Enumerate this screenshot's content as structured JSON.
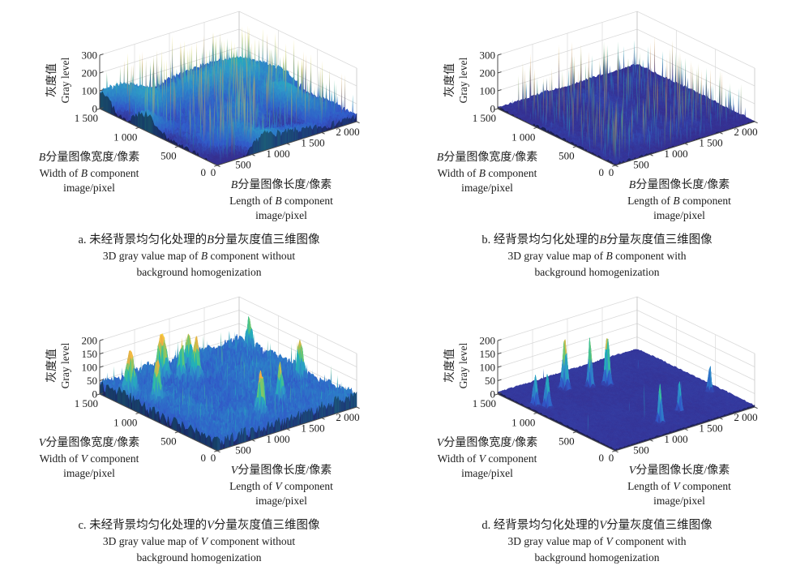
{
  "figure": {
    "background": "#ffffff",
    "grid_color": "#d9d9d9",
    "box_color": "#c6c6c6",
    "axis_color": "#4b4b4b",
    "text_color": "#1c1c1c",
    "colormap": [
      [
        0,
        "#342d8e"
      ],
      [
        0.12,
        "#3158c8"
      ],
      [
        0.25,
        "#2d7dc8"
      ],
      [
        0.37,
        "#2f9ac8"
      ],
      [
        0.5,
        "#20b5b4"
      ],
      [
        0.62,
        "#5ec878"
      ],
      [
        0.75,
        "#b9c24f"
      ],
      [
        0.87,
        "#f2ab44"
      ],
      [
        1,
        "#f7e63e"
      ]
    ]
  },
  "chart_data": [
    {
      "id": "a",
      "type": "surface3d",
      "zlabel": {
        "zh": "灰度值",
        "en": "Gray level"
      },
      "ylabel_lines": [
        [
          [
            "B",
            1
          ],
          [
            "分量图像宽度/像素",
            0
          ]
        ],
        [
          [
            "Width of ",
            0
          ],
          [
            "B",
            1
          ],
          [
            " component",
            0
          ]
        ],
        [
          [
            "image/pixel",
            0
          ]
        ]
      ],
      "xlabel_lines": [
        [
          [
            "B",
            1
          ],
          [
            "分量图像长度/像素",
            0
          ]
        ],
        [
          [
            "Length of ",
            0
          ],
          [
            "B",
            1
          ],
          [
            " component",
            0
          ]
        ],
        [
          [
            "image/pixel",
            0
          ]
        ]
      ],
      "caption_lines": [
        [
          [
            "a. 未经背景均匀化处理的",
            0
          ],
          [
            "B",
            1
          ],
          [
            "分量灰度值三维图像",
            0
          ]
        ],
        [
          [
            "3D gray value map of ",
            0
          ],
          [
            "B",
            1
          ],
          [
            " component without",
            0
          ]
        ],
        [
          [
            "background homogenization",
            0
          ]
        ]
      ],
      "x_ticks": [
        "0",
        "500",
        "1 000",
        "1 500",
        "2 000"
      ],
      "y_ticks": [
        "0",
        "500",
        "1 000",
        "1 500"
      ],
      "z_ticks": [
        "0",
        "100",
        "200",
        "300"
      ],
      "xlim": [
        0,
        2000
      ],
      "ylim": [
        0,
        1500
      ],
      "zlim": [
        0,
        300
      ],
      "surface": {
        "seed": 7,
        "base": 16,
        "dome_amp": 115,
        "dome_off": 0.38,
        "noise_amp": 20,
        "base_cap": 152,
        "bump": {
          "x": 0.55,
          "y": 0.72,
          "h": 58,
          "r": 0.55
        },
        "spike": {
          "prob": 0.055,
          "add": 45,
          "gain": 235,
          "pow": 1.5
        },
        "peaks": []
      }
    },
    {
      "id": "b",
      "type": "surface3d",
      "zlabel": {
        "zh": "灰度值",
        "en": "Gray level"
      },
      "ylabel_lines": [
        [
          [
            "B",
            1
          ],
          [
            "分量图像宽度/像素",
            0
          ]
        ],
        [
          [
            "Width of ",
            0
          ],
          [
            "B",
            1
          ],
          [
            " component",
            0
          ]
        ],
        [
          [
            "image/pixel",
            0
          ]
        ]
      ],
      "xlabel_lines": [
        [
          [
            "B",
            1
          ],
          [
            "分量图像长度/像素",
            0
          ]
        ],
        [
          [
            "Length of ",
            0
          ],
          [
            "B",
            1
          ],
          [
            " component",
            0
          ]
        ],
        [
          [
            "image/pixel",
            0
          ]
        ]
      ],
      "caption_lines": [
        [
          [
            "b. 经背景均匀化处理的",
            0
          ],
          [
            "B",
            1
          ],
          [
            "分量灰度值三维图像",
            0
          ]
        ],
        [
          [
            "3D gray value map of ",
            0
          ],
          [
            "B",
            1
          ],
          [
            " component with",
            0
          ]
        ],
        [
          [
            "background homogenization",
            0
          ]
        ]
      ],
      "x_ticks": [
        "0",
        "500",
        "1 000",
        "1 500",
        "2 000"
      ],
      "y_ticks": [
        "0",
        "500",
        "1 000",
        "1 500"
      ],
      "z_ticks": [
        "0",
        "100",
        "200",
        "300"
      ],
      "xlim": [
        0,
        2000
      ],
      "ylim": [
        0,
        1500
      ],
      "zlim": [
        0,
        300
      ],
      "surface": {
        "seed": 13,
        "base": 8,
        "dome_amp": 18,
        "dome_off": 0.5,
        "noise_amp": 8,
        "base_cap": 60,
        "spike": {
          "prob": 0.05,
          "add": 40,
          "gain": 225,
          "pow": 1.6
        },
        "peaks": []
      }
    },
    {
      "id": "c",
      "type": "surface3d",
      "zlabel": {
        "zh": "灰度值",
        "en": "Gray level"
      },
      "ylabel_lines": [
        [
          [
            "V",
            1
          ],
          [
            "分量图像宽度/像素",
            0
          ]
        ],
        [
          [
            "Width of ",
            0
          ],
          [
            "V",
            1
          ],
          [
            " component",
            0
          ]
        ],
        [
          [
            "image/pixel",
            0
          ]
        ]
      ],
      "xlabel_lines": [
        [
          [
            "V",
            1
          ],
          [
            "分量图像长度/像素",
            0
          ]
        ],
        [
          [
            "Length of ",
            0
          ],
          [
            "V",
            1
          ],
          [
            " component",
            0
          ]
        ],
        [
          [
            "image/pixel",
            0
          ]
        ]
      ],
      "caption_lines": [
        [
          [
            "c. 未经背景均匀化处理的",
            0
          ],
          [
            "V",
            1
          ],
          [
            "分量灰度值三维图像",
            0
          ]
        ],
        [
          [
            "3D gray value map of ",
            0
          ],
          [
            "V",
            1
          ],
          [
            " component without",
            0
          ]
        ],
        [
          [
            "background homogenization",
            0
          ]
        ]
      ],
      "x_ticks": [
        "0",
        "500",
        "1 000",
        "1 500",
        "2 000"
      ],
      "y_ticks": [
        "0",
        "500",
        "1 000",
        "1 500"
      ],
      "z_ticks": [
        "0",
        "50",
        "100",
        "150",
        "200"
      ],
      "xlim": [
        0,
        2000
      ],
      "ylim": [
        0,
        1500
      ],
      "zlim": [
        0,
        200
      ],
      "surface": {
        "seed": 21,
        "base": 36,
        "dome_amp": 22,
        "dome_off": 0.5,
        "noise_amp": 22,
        "base_cap": 120,
        "spike": {
          "prob": 0.055,
          "add": 10,
          "gain": 60,
          "pow": 1.6
        },
        "peaks": [
          {
            "x": 0.05,
            "y": 0.8,
            "h": 165,
            "r": 0.03
          },
          {
            "x": 0.1,
            "y": 0.63,
            "h": 150,
            "r": 0.025
          },
          {
            "x": 0.33,
            "y": 0.86,
            "h": 190,
            "r": 0.03
          },
          {
            "x": 0.4,
            "y": 0.78,
            "h": 140,
            "r": 0.022
          },
          {
            "x": 0.47,
            "y": 0.74,
            "h": 160,
            "r": 0.026
          },
          {
            "x": 0.52,
            "y": 0.86,
            "h": 150,
            "r": 0.022
          },
          {
            "x": 0.44,
            "y": 0.15,
            "h": 165,
            "r": 0.024
          },
          {
            "x": 0.64,
            "y": 0.22,
            "h": 140,
            "r": 0.02
          },
          {
            "x": 0.93,
            "y": 0.4,
            "h": 145,
            "r": 0.022
          },
          {
            "x": 0.97,
            "y": 0.88,
            "h": 115,
            "r": 0.018
          }
        ]
      }
    },
    {
      "id": "d",
      "type": "surface3d",
      "zlabel": {
        "zh": "灰度值",
        "en": "Gray level"
      },
      "ylabel_lines": [
        [
          [
            "V",
            1
          ],
          [
            "分量图像宽度/像素",
            0
          ]
        ],
        [
          [
            "Width of ",
            0
          ],
          [
            "V",
            1
          ],
          [
            " component",
            0
          ]
        ],
        [
          [
            "image/pixel",
            0
          ]
        ]
      ],
      "xlabel_lines": [
        [
          [
            "V",
            1
          ],
          [
            "分量图像长度/像素",
            0
          ]
        ],
        [
          [
            "Length of ",
            0
          ],
          [
            "V",
            1
          ],
          [
            " component",
            0
          ]
        ],
        [
          [
            "image/pixel",
            0
          ]
        ]
      ],
      "caption_lines": [
        [
          [
            "d. 经背景均匀化处理的",
            0
          ],
          [
            "V",
            1
          ],
          [
            "分量灰度值三维图像",
            0
          ]
        ],
        [
          [
            "3D gray value map of ",
            0
          ],
          [
            "V",
            1
          ],
          [
            " component with",
            0
          ]
        ],
        [
          [
            "background homogenization",
            0
          ]
        ]
      ],
      "x_ticks": [
        "0",
        "500",
        "1 000",
        "1 500",
        "2 000"
      ],
      "y_ticks": [
        "0",
        "500",
        "1 000",
        "1 500"
      ],
      "z_ticks": [
        "0",
        "50",
        "100",
        "150",
        "200"
      ],
      "xlim": [
        0,
        2000
      ],
      "ylim": [
        0,
        1500
      ],
      "zlim": [
        0,
        200
      ],
      "surface": {
        "seed": 29,
        "base": 6,
        "dome_amp": 3,
        "dome_off": 0.5,
        "noise_amp": 2.5,
        "base_cap": 30,
        "spike": {
          "prob": 0.0008,
          "add": 30,
          "gain": 60,
          "pow": 1
        },
        "peaks": [
          {
            "x": 0.05,
            "y": 0.74,
            "h": 115,
            "r": 0.016
          },
          {
            "x": 0.085,
            "y": 0.68,
            "h": 128,
            "r": 0.016
          },
          {
            "x": 0.33,
            "y": 0.82,
            "h": 190,
            "r": 0.018
          },
          {
            "x": 0.46,
            "y": 0.76,
            "h": 188,
            "r": 0.013
          },
          {
            "x": 0.55,
            "y": 0.72,
            "h": 195,
            "r": 0.016
          },
          {
            "x": 0.44,
            "y": 0.14,
            "h": 150,
            "r": 0.013
          },
          {
            "x": 0.63,
            "y": 0.2,
            "h": 118,
            "r": 0.012
          },
          {
            "x": 0.93,
            "y": 0.3,
            "h": 108,
            "r": 0.011
          }
        ]
      }
    }
  ]
}
